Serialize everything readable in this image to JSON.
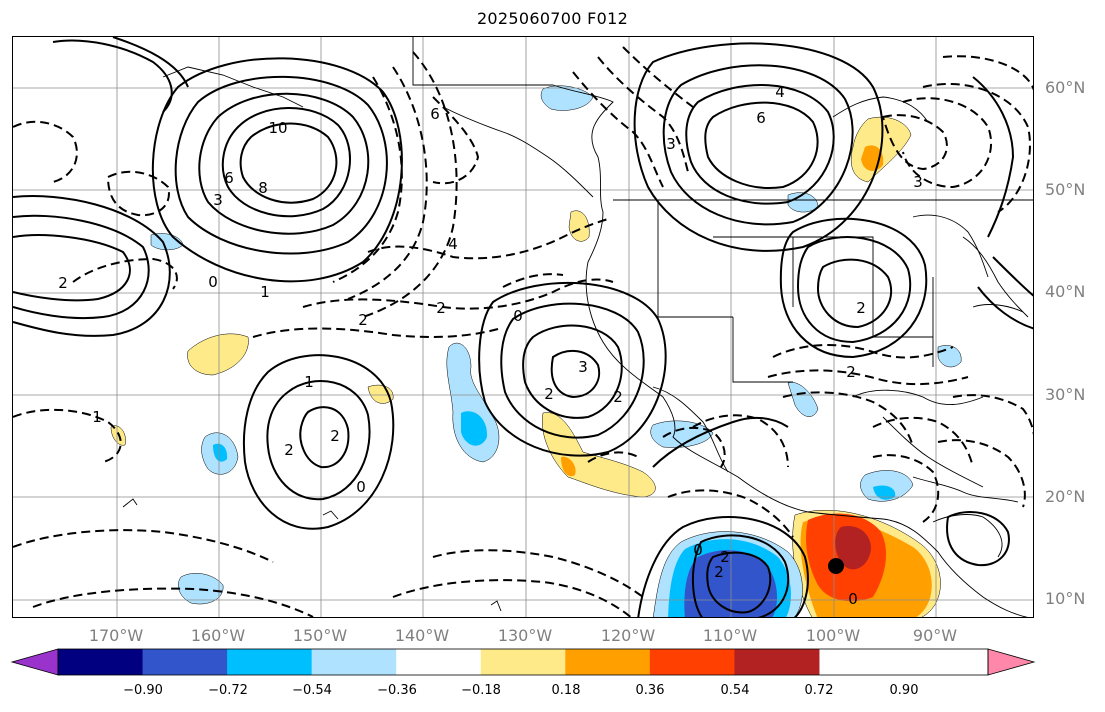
{
  "title": "2025060700 F012",
  "lat_labels": [
    "60°N",
    "50°N",
    "40°N",
    "30°N",
    "20°N",
    "10°N"
  ],
  "lon_labels": [
    "170°W",
    "160°W",
    "150°W",
    "140°W",
    "130°W",
    "120°W",
    "110°W",
    "100°W",
    "90°W"
  ],
  "colorbar": {
    "tick_labels": [
      "−0.90",
      "−0.72",
      "−0.54",
      "−0.36",
      "−0.18",
      "0.18",
      "0.36",
      "0.54",
      "0.72",
      "0.90"
    ],
    "colors": [
      "#9933cc",
      "#000080",
      "#3355cc",
      "#00bfff",
      "#aee2ff",
      "#ffffff",
      "#ffea8a",
      "#ffa000",
      "#ff4000",
      "#b22222",
      "#ff88aa"
    ]
  },
  "contour_labels": [
    "2",
    "0",
    "10",
    "8",
    "6",
    "3",
    "1",
    "4",
    "6",
    "4",
    "3",
    "2",
    "6",
    "3",
    "2",
    "2",
    "0",
    "2",
    "1",
    "2",
    "3",
    "2",
    "1",
    "0",
    "2",
    "0",
    "2",
    "2",
    "0",
    "2"
  ],
  "colors": {
    "grid": "#8c8c8c",
    "axis_label": "#808080",
    "pos_light": "#ffea8a",
    "pos_mid": "#ffa000",
    "pos_strong": "#ff4000",
    "pos_max": "#b22222",
    "neg_light": "#aee2ff",
    "neg_mid": "#00bfff",
    "neg_strong": "#3355cc"
  }
}
